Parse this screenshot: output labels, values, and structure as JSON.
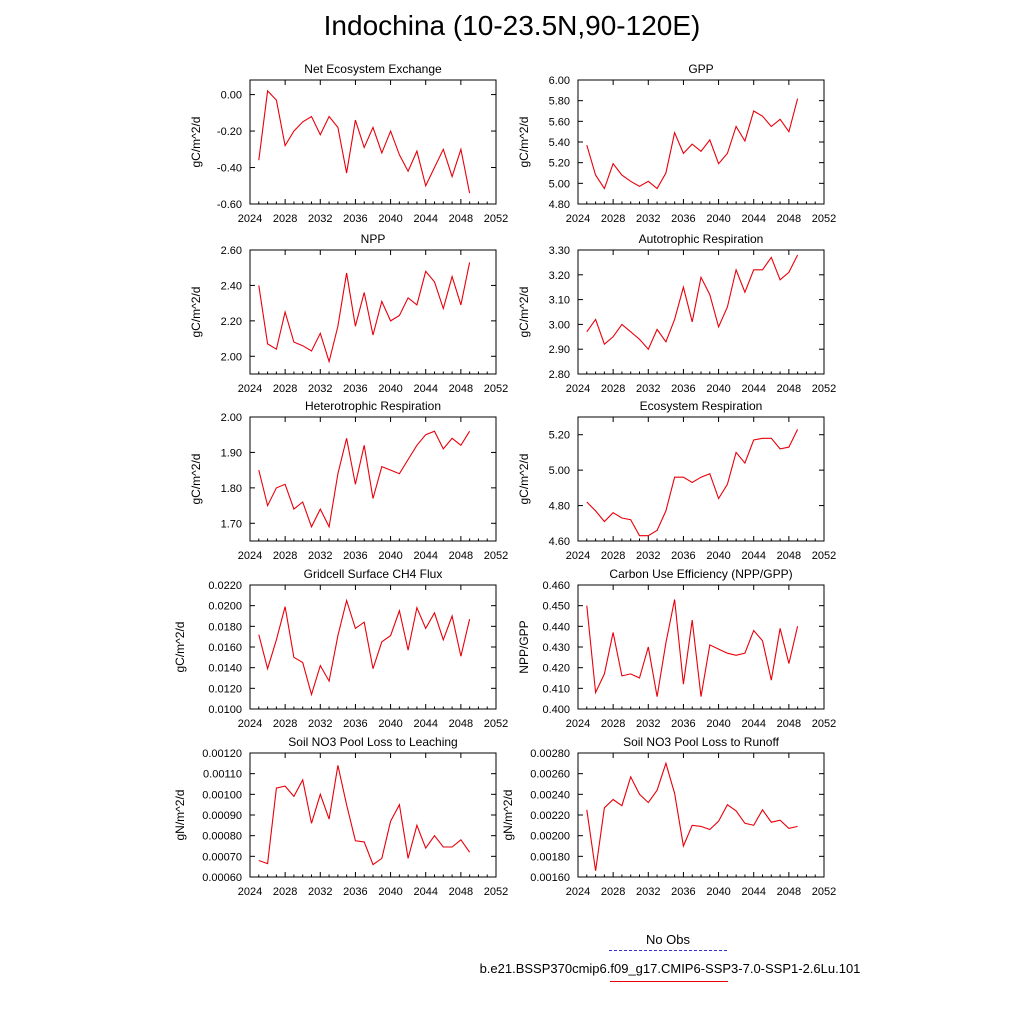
{
  "title": "Indochina (10-23.5N,90-120E)",
  "legend": {
    "obs_label": "No Obs",
    "obs_color": "#3333cc",
    "model_label": "b.e21.BSSP370cmip6.f09_g17.CMIP6-SSP3-7.0-SSP1-2.6Lu.101",
    "model_color": "#e8000b"
  },
  "line_color": "#e8000b",
  "chart_data": [
    {
      "type": "line",
      "title": "Net Ecosystem Exchange",
      "ylabel": "gC/m^2/d",
      "xlim": [
        2024,
        2052
      ],
      "xticks": [
        "2024",
        "2028",
        "2032",
        "2036",
        "2040",
        "2044",
        "2048",
        "2052"
      ],
      "ylim": [
        -0.6,
        0.08
      ],
      "yticks": [
        "-0.60",
        "-0.40",
        "-0.20",
        "0.00"
      ],
      "ytick_values": [
        -0.6,
        -0.4,
        -0.2,
        0.0
      ],
      "x": [
        2025,
        2026,
        2027,
        2028,
        2029,
        2030,
        2031,
        2032,
        2033,
        2034,
        2035,
        2036,
        2037,
        2038,
        2039,
        2040,
        2041,
        2042,
        2043,
        2044,
        2045,
        2046,
        2047,
        2048,
        2049
      ],
      "values": [
        -0.36,
        0.02,
        -0.03,
        -0.28,
        -0.2,
        -0.15,
        -0.12,
        -0.22,
        -0.12,
        -0.18,
        -0.43,
        -0.14,
        -0.29,
        -0.18,
        -0.32,
        -0.2,
        -0.33,
        -0.42,
        -0.31,
        -0.5,
        -0.4,
        -0.3,
        -0.45,
        -0.3,
        -0.54
      ]
    },
    {
      "type": "line",
      "title": "GPP",
      "ylabel": "gC/m^2/d",
      "xlim": [
        2024,
        2052
      ],
      "xticks": [
        "2024",
        "2028",
        "2032",
        "2036",
        "2040",
        "2044",
        "2048",
        "2052"
      ],
      "ylim": [
        4.8,
        6.0
      ],
      "yticks": [
        "4.80",
        "5.00",
        "5.20",
        "5.40",
        "5.60",
        "5.80",
        "6.00"
      ],
      "ytick_values": [
        4.8,
        5.0,
        5.2,
        5.4,
        5.6,
        5.8,
        6.0
      ],
      "x": [
        2025,
        2026,
        2027,
        2028,
        2029,
        2030,
        2031,
        2032,
        2033,
        2034,
        2035,
        2036,
        2037,
        2038,
        2039,
        2040,
        2041,
        2042,
        2043,
        2044,
        2045,
        2046,
        2047,
        2048,
        2049
      ],
      "values": [
        5.37,
        5.08,
        4.95,
        5.19,
        5.08,
        5.02,
        4.97,
        5.02,
        4.95,
        5.1,
        5.49,
        5.29,
        5.38,
        5.31,
        5.42,
        5.19,
        5.29,
        5.55,
        5.41,
        5.7,
        5.65,
        5.55,
        5.62,
        5.5,
        5.82
      ]
    },
    {
      "type": "line",
      "title": "NPP",
      "ylabel": "gC/m^2/d",
      "xlim": [
        2024,
        2052
      ],
      "xticks": [
        "2024",
        "2028",
        "2032",
        "2036",
        "2040",
        "2044",
        "2048",
        "2052"
      ],
      "ylim": [
        1.9,
        2.6
      ],
      "yticks": [
        "2.00",
        "2.20",
        "2.40",
        "2.60"
      ],
      "ytick_values": [
        2.0,
        2.2,
        2.4,
        2.6
      ],
      "x": [
        2025,
        2026,
        2027,
        2028,
        2029,
        2030,
        2031,
        2032,
        2033,
        2034,
        2035,
        2036,
        2037,
        2038,
        2039,
        2040,
        2041,
        2042,
        2043,
        2044,
        2045,
        2046,
        2047,
        2048,
        2049
      ],
      "values": [
        2.4,
        2.07,
        2.04,
        2.25,
        2.08,
        2.06,
        2.03,
        2.13,
        1.97,
        2.17,
        2.47,
        2.17,
        2.36,
        2.12,
        2.31,
        2.2,
        2.23,
        2.33,
        2.29,
        2.48,
        2.42,
        2.27,
        2.45,
        2.29,
        2.53
      ]
    },
    {
      "type": "line",
      "title": "Autotrophic Respiration",
      "ylabel": "gC/m^2/d",
      "xlim": [
        2024,
        2052
      ],
      "xticks": [
        "2024",
        "2028",
        "2032",
        "2036",
        "2040",
        "2044",
        "2048",
        "2052"
      ],
      "ylim": [
        2.8,
        3.3
      ],
      "yticks": [
        "2.80",
        "2.90",
        "3.00",
        "3.10",
        "3.20",
        "3.30"
      ],
      "ytick_values": [
        2.8,
        2.9,
        3.0,
        3.1,
        3.2,
        3.3
      ],
      "x": [
        2025,
        2026,
        2027,
        2028,
        2029,
        2030,
        2031,
        2032,
        2033,
        2034,
        2035,
        2036,
        2037,
        2038,
        2039,
        2040,
        2041,
        2042,
        2043,
        2044,
        2045,
        2046,
        2047,
        2048,
        2049
      ],
      "values": [
        2.97,
        3.02,
        2.92,
        2.95,
        3.0,
        2.97,
        2.94,
        2.9,
        2.98,
        2.93,
        3.02,
        3.15,
        3.01,
        3.19,
        3.12,
        2.99,
        3.07,
        3.22,
        3.13,
        3.22,
        3.22,
        3.27,
        3.18,
        3.21,
        3.28
      ]
    },
    {
      "type": "line",
      "title": "Heterotrophic Respiration",
      "ylabel": "gC/m^2/d",
      "xlim": [
        2024,
        2052
      ],
      "xticks": [
        "2024",
        "2028",
        "2032",
        "2036",
        "2040",
        "2044",
        "2048",
        "2052"
      ],
      "ylim": [
        1.65,
        2.0
      ],
      "yticks": [
        "1.70",
        "1.80",
        "1.90",
        "2.00"
      ],
      "ytick_values": [
        1.7,
        1.8,
        1.9,
        2.0
      ],
      "x": [
        2025,
        2026,
        2027,
        2028,
        2029,
        2030,
        2031,
        2032,
        2033,
        2034,
        2035,
        2036,
        2037,
        2038,
        2039,
        2040,
        2041,
        2042,
        2043,
        2044,
        2045,
        2046,
        2047,
        2048,
        2049
      ],
      "values": [
        1.85,
        1.75,
        1.8,
        1.81,
        1.74,
        1.76,
        1.69,
        1.74,
        1.69,
        1.84,
        1.94,
        1.81,
        1.92,
        1.77,
        1.86,
        1.85,
        1.84,
        1.88,
        1.92,
        1.95,
        1.96,
        1.91,
        1.94,
        1.92,
        1.96
      ]
    },
    {
      "type": "line",
      "title": "Ecosystem Respiration",
      "ylabel": "gC/m^2/d",
      "xlim": [
        2024,
        2052
      ],
      "xticks": [
        "2024",
        "2028",
        "2032",
        "2036",
        "2040",
        "2044",
        "2048",
        "2052"
      ],
      "ylim": [
        4.6,
        5.3
      ],
      "yticks": [
        "4.60",
        "4.80",
        "5.00",
        "5.20"
      ],
      "ytick_values": [
        4.6,
        4.8,
        5.0,
        5.2
      ],
      "x": [
        2025,
        2026,
        2027,
        2028,
        2029,
        2030,
        2031,
        2032,
        2033,
        2034,
        2035,
        2036,
        2037,
        2038,
        2039,
        2040,
        2041,
        2042,
        2043,
        2044,
        2045,
        2046,
        2047,
        2048,
        2049
      ],
      "values": [
        4.82,
        4.77,
        4.71,
        4.76,
        4.73,
        4.72,
        4.63,
        4.63,
        4.66,
        4.77,
        4.96,
        4.96,
        4.93,
        4.96,
        4.98,
        4.84,
        4.92,
        5.1,
        5.04,
        5.17,
        5.18,
        5.18,
        5.12,
        5.13,
        5.23
      ]
    },
    {
      "type": "line",
      "title": "Gridcell Surface CH4 Flux",
      "ylabel": "gC/m^2/d",
      "xlim": [
        2024,
        2052
      ],
      "xticks": [
        "2024",
        "2028",
        "2032",
        "2036",
        "2040",
        "2044",
        "2048",
        "2052"
      ],
      "ylim": [
        0.01,
        0.022
      ],
      "yticks": [
        "0.0100",
        "0.0120",
        "0.0140",
        "0.0160",
        "0.0180",
        "0.0200",
        "0.0220"
      ],
      "ytick_values": [
        0.01,
        0.012,
        0.014,
        0.016,
        0.018,
        0.02,
        0.022
      ],
      "x": [
        2025,
        2026,
        2027,
        2028,
        2029,
        2030,
        2031,
        2032,
        2033,
        2034,
        2035,
        2036,
        2037,
        2038,
        2039,
        2040,
        2041,
        2042,
        2043,
        2044,
        2045,
        2046,
        2047,
        2048,
        2049
      ],
      "values": [
        0.0172,
        0.0139,
        0.0167,
        0.0199,
        0.015,
        0.0145,
        0.0114,
        0.0142,
        0.0127,
        0.0171,
        0.0205,
        0.0178,
        0.0184,
        0.0139,
        0.0165,
        0.0171,
        0.0195,
        0.0157,
        0.0198,
        0.0178,
        0.0193,
        0.0167,
        0.019,
        0.0151,
        0.0187
      ]
    },
    {
      "type": "line",
      "title": "Carbon Use Efficiency (NPP/GPP)",
      "ylabel": "NPP/GPP",
      "xlim": [
        2024,
        2052
      ],
      "xticks": [
        "2024",
        "2028",
        "2032",
        "2036",
        "2040",
        "2044",
        "2048",
        "2052"
      ],
      "ylim": [
        0.4,
        0.46
      ],
      "yticks": [
        "0.400",
        "0.410",
        "0.420",
        "0.430",
        "0.440",
        "0.450",
        "0.460"
      ],
      "ytick_values": [
        0.4,
        0.41,
        0.42,
        0.43,
        0.44,
        0.45,
        0.46
      ],
      "x": [
        2025,
        2026,
        2027,
        2028,
        2029,
        2030,
        2031,
        2032,
        2033,
        2034,
        2035,
        2036,
        2037,
        2038,
        2039,
        2040,
        2041,
        2042,
        2043,
        2044,
        2045,
        2046,
        2047,
        2048,
        2049
      ],
      "values": [
        0.45,
        0.408,
        0.417,
        0.437,
        0.416,
        0.417,
        0.415,
        0.43,
        0.406,
        0.432,
        0.453,
        0.412,
        0.443,
        0.406,
        0.431,
        0.429,
        0.427,
        0.426,
        0.427,
        0.438,
        0.433,
        0.414,
        0.439,
        0.422,
        0.44
      ]
    },
    {
      "type": "line",
      "title": "Soil NO3 Pool Loss to Leaching",
      "ylabel": "gN/m^2/d",
      "xlim": [
        2024,
        2052
      ],
      "xticks": [
        "2024",
        "2028",
        "2032",
        "2036",
        "2040",
        "2044",
        "2048",
        "2052"
      ],
      "ylim": [
        0.0006,
        0.0012
      ],
      "yticks": [
        "0.00060",
        "0.00070",
        "0.00080",
        "0.00090",
        "0.00100",
        "0.00110",
        "0.00120"
      ],
      "ytick_values": [
        0.0006,
        0.0007,
        0.0008,
        0.0009,
        0.001,
        0.0011,
        0.0012
      ],
      "x": [
        2025,
        2026,
        2027,
        2028,
        2029,
        2030,
        2031,
        2032,
        2033,
        2034,
        2035,
        2036,
        2037,
        2038,
        2039,
        2040,
        2041,
        2042,
        2043,
        2044,
        2045,
        2046,
        2047,
        2048,
        2049
      ],
      "values": [
        0.00068,
        0.000665,
        0.00103,
        0.00104,
        0.00099,
        0.00107,
        0.00086,
        0.001,
        0.00088,
        0.00114,
        0.00095,
        0.000775,
        0.00077,
        0.00066,
        0.00069,
        0.00087,
        0.00095,
        0.00069,
        0.00085,
        0.00074,
        0.0008,
        0.000745,
        0.000745,
        0.00078,
        0.00072
      ]
    },
    {
      "type": "line",
      "title": "Soil NO3 Pool Loss to Runoff",
      "ylabel": "gN/m^2/d",
      "xlim": [
        2024,
        2052
      ],
      "xticks": [
        "2024",
        "2028",
        "2032",
        "2036",
        "2040",
        "2044",
        "2048",
        "2052"
      ],
      "ylim": [
        0.0016,
        0.0028
      ],
      "yticks": [
        "0.00160",
        "0.00180",
        "0.00200",
        "0.00220",
        "0.00240",
        "0.00260",
        "0.00280"
      ],
      "ytick_values": [
        0.0016,
        0.0018,
        0.002,
        0.0022,
        0.0024,
        0.0026,
        0.0028
      ],
      "x": [
        2025,
        2026,
        2027,
        2028,
        2029,
        2030,
        2031,
        2032,
        2033,
        2034,
        2035,
        2036,
        2037,
        2038,
        2039,
        2040,
        2041,
        2042,
        2043,
        2044,
        2045,
        2046,
        2047,
        2048,
        2049
      ],
      "values": [
        0.00225,
        0.00166,
        0.00227,
        0.00235,
        0.00229,
        0.00257,
        0.0024,
        0.00232,
        0.00244,
        0.0027,
        0.00241,
        0.0019,
        0.0021,
        0.00209,
        0.00206,
        0.00214,
        0.0023,
        0.00224,
        0.00212,
        0.0021,
        0.00225,
        0.00213,
        0.00215,
        0.00207,
        0.00209
      ]
    }
  ]
}
